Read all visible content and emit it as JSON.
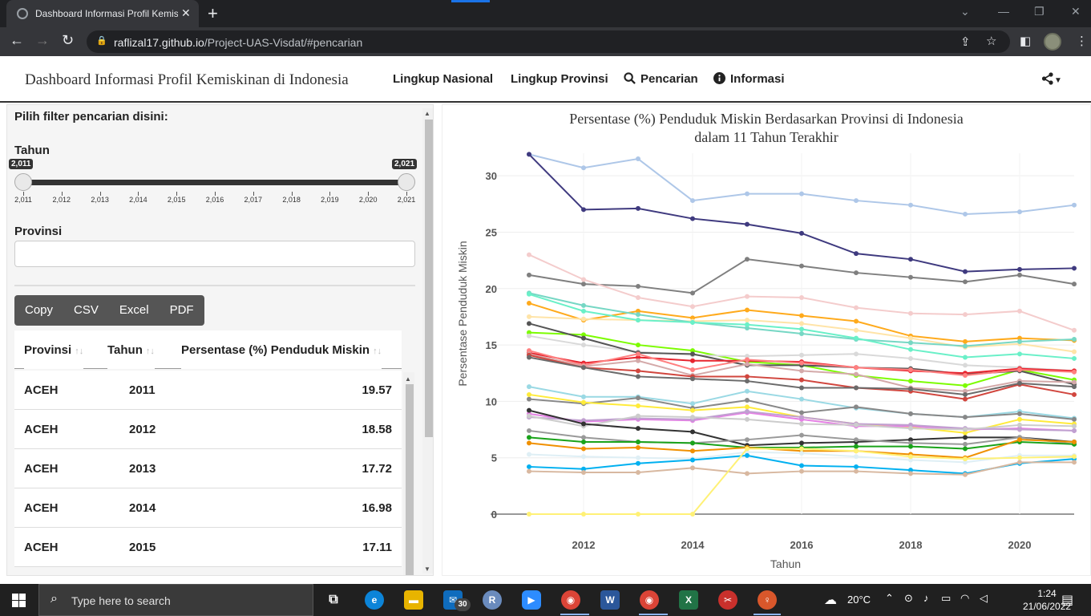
{
  "browser": {
    "tab_title": "Dashboard Informasi Profil Kemis",
    "url_host": "raflizal17.github.io",
    "url_path": "/Project-UAS-Visdat/#pencarian"
  },
  "app": {
    "brand": "Dashboard Informasi Profil Kemiskinan di Indonesia",
    "nav": [
      {
        "label": "Lingkup Nasional",
        "icon": ""
      },
      {
        "label": "Lingkup Provinsi",
        "icon": ""
      },
      {
        "label": "Pencarian",
        "icon": "search-icon"
      },
      {
        "label": "Informasi",
        "icon": "info-circle-icon"
      }
    ]
  },
  "sidebar": {
    "heading": "Pilih filter pencarian disini:",
    "year_label": "Tahun",
    "slider": {
      "min": 2011,
      "max": 2021,
      "from": 2011,
      "to": 2021,
      "from_label": "2,011",
      "to_label": "2,021",
      "ticks": [
        "2,011",
        "2,012",
        "2,013",
        "2,014",
        "2,015",
        "2,016",
        "2,017",
        "2,018",
        "2,019",
        "2,020",
        "2,021"
      ]
    },
    "province_label": "Provinsi",
    "province_value": "",
    "export_buttons": [
      "Copy",
      "CSV",
      "Excel",
      "PDF"
    ]
  },
  "table": {
    "columns": [
      "Provinsi",
      "Tahun",
      "Persentase (%) Penduduk Miskin"
    ],
    "rows": [
      [
        "ACEH",
        "2011",
        "19.57"
      ],
      [
        "ACEH",
        "2012",
        "18.58"
      ],
      [
        "ACEH",
        "2013",
        "17.72"
      ],
      [
        "ACEH",
        "2014",
        "16.98"
      ],
      [
        "ACEH",
        "2015",
        "17.11"
      ]
    ]
  },
  "chart_data": {
    "type": "line",
    "title": "Persentase (%) Penduduk Miskin Berdasarkan Provinsi di Indonesia",
    "subtitle": "dalam 11 Tahun Terakhir",
    "xlabel": "Tahun",
    "ylabel": "Persentase Penduduk Miskin",
    "xlim": [
      2011,
      2021
    ],
    "ylim": [
      0,
      32
    ],
    "xticks": [
      2012,
      2014,
      2016,
      2018,
      2020
    ],
    "yticks": [
      0,
      5,
      10,
      15,
      20,
      25,
      30
    ],
    "grid": true,
    "x": [
      2011,
      2012,
      2013,
      2014,
      2015,
      2016,
      2017,
      2018,
      2019,
      2020,
      2021
    ],
    "series": [
      {
        "color": "#aec7e8",
        "values": [
          31.9,
          30.7,
          31.5,
          27.8,
          28.4,
          28.4,
          27.8,
          27.4,
          26.6,
          26.8,
          27.4
        ]
      },
      {
        "color": "#3f3a7f",
        "values": [
          31.9,
          27.0,
          27.1,
          26.2,
          25.7,
          24.9,
          23.1,
          22.6,
          21.5,
          21.7,
          21.8
        ]
      },
      {
        "color": "#7f7f7f",
        "values": [
          21.2,
          20.4,
          20.2,
          19.6,
          22.6,
          22.0,
          21.4,
          21.0,
          20.6,
          21.2,
          20.4
        ]
      },
      {
        "color": "#f4cccc",
        "values": [
          23.0,
          20.8,
          19.2,
          18.4,
          19.3,
          19.2,
          18.3,
          17.8,
          17.7,
          18.0,
          16.3
        ]
      },
      {
        "color": "#ffaa1c",
        "values": [
          18.7,
          17.2,
          18.0,
          17.4,
          18.1,
          17.6,
          17.1,
          15.8,
          15.3,
          15.6,
          15.4
        ]
      },
      {
        "color": "#ffe4a8",
        "values": [
          17.5,
          17.3,
          17.2,
          17.1,
          17.2,
          16.9,
          16.3,
          15.6,
          14.8,
          15.1,
          14.4
        ]
      },
      {
        "color": "#76d7c4",
        "values": [
          19.6,
          18.5,
          17.7,
          17.0,
          16.5,
          16.0,
          15.5,
          15.2,
          14.9,
          15.3,
          15.5
        ]
      },
      {
        "color": "#6af0c8",
        "values": [
          19.5,
          18.0,
          17.2,
          17.0,
          16.8,
          16.4,
          15.6,
          14.6,
          13.9,
          14.2,
          13.8
        ]
      },
      {
        "color": "#7cfc00",
        "values": [
          16.1,
          15.9,
          15.0,
          14.5,
          13.5,
          13.2,
          12.3,
          11.8,
          11.4,
          12.8,
          11.9
        ]
      },
      {
        "color": "#d9d9d9",
        "values": [
          15.8,
          15.0,
          14.4,
          14.1,
          14.0,
          14.1,
          14.2,
          13.8,
          13.2,
          13.0,
          12.7
        ]
      },
      {
        "color": "#555555",
        "values": [
          16.9,
          15.6,
          14.3,
          14.2,
          13.2,
          13.2,
          13.0,
          12.9,
          12.4,
          12.7,
          11.5
        ]
      },
      {
        "color": "#e7252f",
        "values": [
          14.3,
          13.4,
          13.9,
          13.6,
          13.6,
          13.5,
          13.0,
          12.7,
          12.5,
          12.9,
          12.7
        ]
      },
      {
        "color": "#ff8080",
        "values": [
          14.5,
          13.2,
          14.2,
          12.8,
          13.7,
          13.4,
          13.0,
          12.8,
          12.3,
          12.8,
          12.6
        ]
      },
      {
        "color": "#d4a9a9",
        "values": [
          14.2,
          13.1,
          13.6,
          12.3,
          13.3,
          12.7,
          12.4,
          11.2,
          10.9,
          11.8,
          11.7
        ]
      },
      {
        "color": "#d1463e",
        "values": [
          14.1,
          13.0,
          12.7,
          12.2,
          12.2,
          11.9,
          11.2,
          10.9,
          10.2,
          11.5,
          10.6
        ]
      },
      {
        "color": "#6b6b6b",
        "values": [
          13.9,
          13.0,
          12.2,
          12.0,
          11.8,
          11.2,
          11.2,
          11.1,
          10.6,
          11.6,
          11.3
        ]
      },
      {
        "color": "#9ad9e4",
        "values": [
          11.3,
          10.4,
          10.4,
          9.8,
          10.9,
          10.2,
          9.4,
          8.9,
          8.6,
          9.1,
          8.5
        ]
      },
      {
        "color": "#888888",
        "values": [
          10.2,
          9.8,
          10.3,
          9.4,
          10.1,
          9.0,
          9.5,
          8.9,
          8.6,
          8.9,
          8.4
        ]
      },
      {
        "color": "#ffeb3b",
        "values": [
          10.6,
          9.9,
          9.6,
          9.2,
          9.5,
          8.6,
          8.0,
          7.7,
          7.2,
          8.4,
          8.0
        ]
      },
      {
        "color": "#e580e5",
        "values": [
          8.9,
          8.2,
          8.4,
          8.3,
          9.0,
          8.4,
          7.8,
          7.8,
          7.5,
          7.6,
          7.4
        ]
      },
      {
        "color": "#c0a0d0",
        "values": [
          8.6,
          8.3,
          8.5,
          8.4,
          9.1,
          8.6,
          8.0,
          7.9,
          7.6,
          7.5,
          7.4
        ]
      },
      {
        "color": "#cccccc",
        "values": [
          8.7,
          7.8,
          8.7,
          8.6,
          8.4,
          8.0,
          7.9,
          7.6,
          7.5,
          7.9,
          7.8
        ]
      },
      {
        "color": "#333333",
        "values": [
          9.2,
          8.0,
          7.6,
          7.3,
          6.1,
          6.3,
          6.4,
          6.6,
          6.8,
          6.8,
          6.4
        ]
      },
      {
        "color": "#999999",
        "values": [
          7.4,
          6.8,
          6.4,
          6.3,
          6.6,
          7.0,
          6.6,
          6.3,
          6.2,
          6.8,
          6.2
        ]
      },
      {
        "color": "#1aa31a",
        "values": [
          6.8,
          6.4,
          6.4,
          6.3,
          5.9,
          5.9,
          6.0,
          6.0,
          5.8,
          6.4,
          6.2
        ]
      },
      {
        "color": "#f09000",
        "values": [
          6.3,
          5.8,
          5.9,
          5.6,
          5.9,
          5.6,
          5.6,
          5.3,
          5.0,
          6.6,
          6.4
        ]
      },
      {
        "color": "#dfeff5",
        "values": [
          5.3,
          5.1,
          5.0,
          4.9,
          5.5,
          5.4,
          5.1,
          4.8,
          4.6,
          5.2,
          5.2
        ]
      },
      {
        "color": "#00b0f0",
        "values": [
          4.2,
          4.0,
          4.5,
          4.8,
          5.2,
          4.3,
          4.2,
          3.9,
          3.6,
          4.5,
          4.9
        ]
      },
      {
        "color": "#d8b8a0",
        "values": [
          3.8,
          3.7,
          3.7,
          4.1,
          3.6,
          3.8,
          3.8,
          3.6,
          3.5,
          4.6,
          4.6
        ]
      },
      {
        "color": "#fff176",
        "values": [
          0,
          0,
          0,
          0,
          5.8,
          5.8,
          5.6,
          5.1,
          4.9,
          5.0,
          5.1
        ]
      }
    ]
  },
  "taskbar": {
    "search_placeholder": "Type here to search",
    "mail_badge": "30",
    "weather": "20°C",
    "time": "1:24",
    "date": "21/06/2022"
  }
}
